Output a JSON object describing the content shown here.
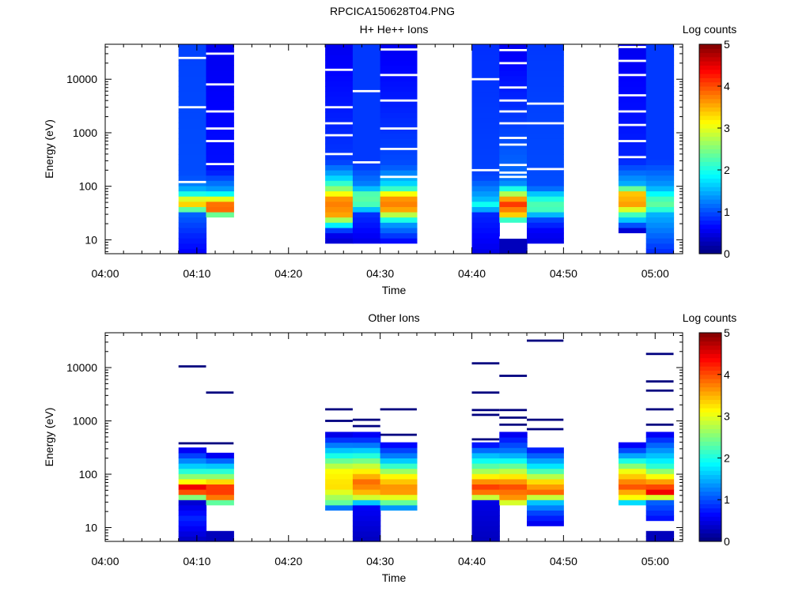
{
  "figure_title": "RPCICA150628T04.PNG",
  "colormap": [
    "#00007f",
    "#0000ff",
    "#007fff",
    "#00ffff",
    "#7fff7f",
    "#ffff00",
    "#ff7f00",
    "#ff0000",
    "#7f0000"
  ],
  "chart_data": [
    {
      "type": "heatmap",
      "title": "H+ He++ Ions",
      "xlabel": "Time",
      "ylabel": "Energy (eV)",
      "xlim": [
        "04:00",
        "05:03"
      ],
      "x_ticks": [
        "04:00",
        "04:10",
        "04:20",
        "04:30",
        "04:40",
        "04:50",
        "05:00"
      ],
      "y_scale": "log",
      "ylim": [
        5.5,
        45000
      ],
      "y_ticks": [
        "10",
        "100",
        "1000",
        "10000"
      ],
      "colorbar": {
        "label": "Log counts",
        "range": [
          0,
          5
        ],
        "ticks": [
          "0",
          "1",
          "2",
          "3",
          "4",
          "5"
        ]
      },
      "energy_bins": 40,
      "columns": [
        {
          "start": "04:08",
          "end": "04:11",
          "profile": [
            [
              5.5,
              0.6
            ],
            [
              12,
              0.8
            ],
            [
              30,
              1.1
            ],
            [
              45,
              3.4
            ],
            [
              60,
              2.9
            ],
            [
              80,
              1.6
            ],
            [
              150,
              1.0
            ],
            [
              45000,
              0.95
            ]
          ],
          "gaps": [
            120,
            3000,
            25000
          ]
        },
        {
          "start": "04:11",
          "end": "04:14",
          "profile": [
            [
              20,
              null
            ],
            [
              28,
              2.0
            ],
            [
              40,
              4.3
            ],
            [
              55,
              3.3
            ],
            [
              80,
              1.5
            ],
            [
              200,
              0.7
            ],
            [
              45000,
              0.55
            ]
          ],
          "gaps": [
            260,
            700,
            1200,
            2500,
            8000,
            30000
          ]
        },
        {
          "start": "04:24",
          "end": "04:27",
          "profile": [
            [
              9,
              0.4
            ],
            [
              14,
              0.6
            ],
            [
              30,
              3.6
            ],
            [
              55,
              3.8
            ],
            [
              90,
              2.6
            ],
            [
              150,
              1.6
            ],
            [
              300,
              0.9
            ],
            [
              45000,
              0.55
            ]
          ],
          "gaps": [
            400,
            900,
            1500,
            3000,
            15000
          ]
        },
        {
          "start": "04:27",
          "end": "04:30",
          "profile": [
            [
              9,
              0.5
            ],
            [
              30,
              0.85
            ],
            [
              45,
              2.2
            ],
            [
              70,
              2.4
            ],
            [
              100,
              1.3
            ],
            [
              250,
              0.9
            ],
            [
              45000,
              0.9
            ]
          ],
          "gaps": [
            280,
            6000
          ]
        },
        {
          "start": "04:30",
          "end": "04:34",
          "profile": [
            [
              9,
              0.6
            ],
            [
              20,
              1.4
            ],
            [
              40,
              3.8
            ],
            [
              65,
              3.6
            ],
            [
              100,
              1.8
            ],
            [
              250,
              1.0
            ],
            [
              45000,
              0.55
            ]
          ],
          "gaps": [
            150,
            500,
            1200,
            4000,
            12000,
            36000
          ]
        },
        {
          "start": "04:40",
          "end": "04:43",
          "profile": [
            [
              5.5,
              0.5
            ],
            [
              30,
              0.8
            ],
            [
              45,
              2.0
            ],
            [
              60,
              1.5
            ],
            [
              150,
              0.95
            ],
            [
              45000,
              0.85
            ]
          ],
          "gaps": [
            200,
            10000
          ]
        },
        {
          "start": "04:43",
          "end": "04:46",
          "profile": [
            [
              5.5,
              0.3
            ],
            [
              10,
              null
            ],
            [
              20,
              1.2
            ],
            [
              30,
              3.4
            ],
            [
              50,
              4.2
            ],
            [
              80,
              2.4
            ],
            [
              120,
              1.2
            ],
            [
              45000,
              0.55
            ]
          ],
          "gaps": [
            11,
            150,
            180,
            250,
            600,
            800,
            1500,
            2500,
            4000,
            7000,
            20000,
            35000
          ]
        },
        {
          "start": "04:46",
          "end": "04:50",
          "profile": [
            [
              9,
              0.5
            ],
            [
              15,
              0.6
            ],
            [
              25,
              1.0
            ],
            [
              40,
              2.4
            ],
            [
              60,
              2.0
            ],
            [
              100,
              1.0
            ],
            [
              45000,
              0.9
            ]
          ],
          "gaps": [
            210,
            1500,
            3500
          ]
        },
        {
          "start": "04:56",
          "end": "04:59",
          "profile": [
            [
              15,
              0.4
            ],
            [
              30,
              2.2
            ],
            [
              45,
              3.6
            ],
            [
              75,
              3.4
            ],
            [
              110,
              1.5
            ],
            [
              300,
              0.8
            ],
            [
              45000,
              0.55
            ]
          ],
          "gaps": [
            350,
            700,
            1400,
            2500,
            5000,
            12000,
            22000,
            40000
          ]
        },
        {
          "start": "04:59",
          "end": "05:02",
          "profile": [
            [
              5.5,
              0.8
            ],
            [
              30,
              1.5
            ],
            [
              42,
              2.4
            ],
            [
              60,
              2.2
            ],
            [
              100,
              1.4
            ],
            [
              300,
              0.9
            ],
            [
              45000,
              0.9
            ]
          ],
          "gaps": []
        }
      ]
    },
    {
      "type": "heatmap",
      "title": "Other Ions",
      "xlabel": "Time",
      "ylabel": "Energy (eV)",
      "xlim": [
        "04:00",
        "05:03"
      ],
      "x_ticks": [
        "04:00",
        "04:10",
        "04:20",
        "04:30",
        "04:40",
        "04:50",
        "05:00"
      ],
      "y_scale": "log",
      "ylim": [
        5.5,
        45000
      ],
      "y_ticks": [
        "10",
        "100",
        "1000",
        "10000"
      ],
      "colorbar": {
        "label": "Log counts",
        "range": [
          0,
          5
        ],
        "ticks": [
          "0",
          "1",
          "2",
          "3",
          "4",
          "5"
        ]
      },
      "energy_bins": 40,
      "columns": [
        {
          "start": "04:08",
          "end": "04:11",
          "profile": [
            [
              5.5,
              0.3
            ],
            [
              15,
              0.8
            ],
            [
              30,
              0.4
            ],
            [
              40,
              3.2
            ],
            [
              55,
              4.8
            ],
            [
              75,
              3.0
            ],
            [
              130,
              1.8
            ],
            [
              300,
              0.5
            ]
          ],
          "lines": [
            10500,
            380
          ]
        },
        {
          "start": "04:11",
          "end": "04:14",
          "profile": [
            [
              5.5,
              0.3
            ],
            [
              9,
              null
            ],
            [
              26,
              1.2
            ],
            [
              35,
              3.7
            ],
            [
              55,
              4.3
            ],
            [
              90,
              2.6
            ],
            [
              200,
              0.9
            ],
            [
              250,
              0.3
            ]
          ],
          "lines": [
            3400,
            380
          ]
        },
        {
          "start": "04:24",
          "end": "04:27",
          "profile": [
            [
              20,
              0.3
            ],
            [
              30,
              2.4
            ],
            [
              60,
              3.3
            ],
            [
              120,
              3.1
            ],
            [
              300,
              1.5
            ],
            [
              600,
              0.4
            ]
          ],
          "lines": [
            1650,
            1000
          ]
        },
        {
          "start": "04:27",
          "end": "04:30",
          "profile": [
            [
              5.5,
              0.3
            ],
            [
              25,
              0.6
            ],
            [
              40,
              3.3
            ],
            [
              70,
              3.9
            ],
            [
              150,
              2.8
            ],
            [
              400,
              1.0
            ],
            [
              650,
              0.4
            ]
          ],
          "lines": [
            1050,
            800
          ]
        },
        {
          "start": "04:30",
          "end": "04:34",
          "profile": [
            [
              20,
              0.6
            ],
            [
              30,
              2.4
            ],
            [
              50,
              3.8
            ],
            [
              90,
              3.2
            ],
            [
              200,
              1.4
            ],
            [
              400,
              0.5
            ]
          ],
          "lines": [
            1650,
            550
          ]
        },
        {
          "start": "04:40",
          "end": "04:43",
          "profile": [
            [
              5.5,
              0.3
            ],
            [
              30,
              0.5
            ],
            [
              40,
              3.6
            ],
            [
              60,
              4.1
            ],
            [
              120,
              2.6
            ],
            [
              250,
              1.4
            ],
            [
              400,
              0.5
            ]
          ],
          "lines": [
            12000,
            3400,
            1600,
            1300,
            450
          ]
        },
        {
          "start": "04:43",
          "end": "04:46",
          "profile": [
            [
              25,
              2.2
            ],
            [
              35,
              3.6
            ],
            [
              60,
              4.0
            ],
            [
              110,
              2.9
            ],
            [
              250,
              1.3
            ],
            [
              600,
              0.5
            ]
          ],
          "lines": [
            7000,
            1600,
            1150,
            850
          ]
        },
        {
          "start": "04:46",
          "end": "04:50",
          "profile": [
            [
              10,
              0.4
            ],
            [
              20,
              1.0
            ],
            [
              30,
              1.6
            ],
            [
              45,
              3.9
            ],
            [
              70,
              3.4
            ],
            [
              140,
              1.8
            ],
            [
              320,
              0.6
            ]
          ],
          "lines": [
            32000,
            1050,
            700
          ]
        },
        {
          "start": "04:56",
          "end": "04:59",
          "profile": [
            [
              25,
              0.3
            ],
            [
              35,
              3.0
            ],
            [
              60,
              4.0
            ],
            [
              120,
              3.0
            ],
            [
              250,
              1.2
            ],
            [
              400,
              0.4
            ]
          ],
          "lines": []
        },
        {
          "start": "04:59",
          "end": "05:02",
          "profile": [
            [
              5.5,
              0.3
            ],
            [
              9,
              null
            ],
            [
              15,
              0.7
            ],
            [
              30,
              1.1
            ],
            [
              45,
              4.5
            ],
            [
              70,
              3.7
            ],
            [
              150,
              2.0
            ],
            [
              400,
              1.0
            ],
            [
              600,
              0.5
            ]
          ],
          "lines": [
            18000,
            5500,
            3700,
            1650,
            850
          ]
        }
      ]
    }
  ]
}
